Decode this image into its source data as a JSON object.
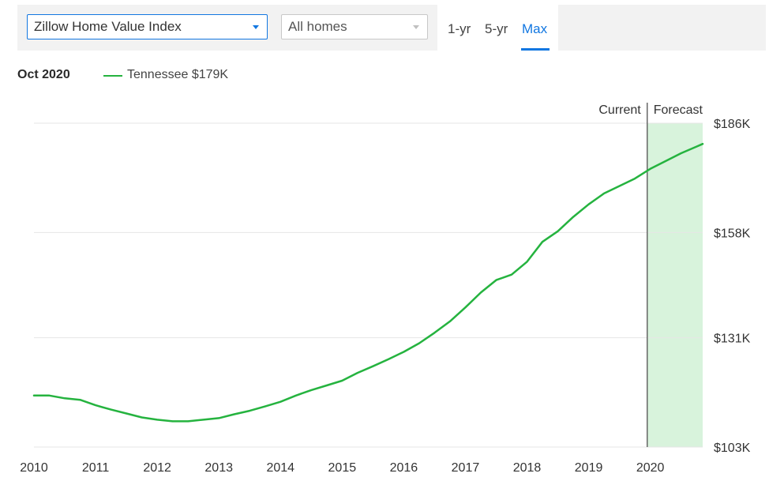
{
  "controls": {
    "index_select": "Zillow Home Value Index",
    "home_type_select": "All homes",
    "range_tabs": [
      "1-yr",
      "5-yr",
      "Max"
    ],
    "active_tab": "Max",
    "accent_color": "#1277e1"
  },
  "legend": {
    "date": "Oct 2020",
    "series_label": "Tennessee $179K",
    "series_color": "#25b33f"
  },
  "chart_data": {
    "type": "line",
    "x_ticks": [
      "2010",
      "2011",
      "2012",
      "2013",
      "2014",
      "2015",
      "2016",
      "2017",
      "2018",
      "2019",
      "2020"
    ],
    "y_ticks": [
      "$103K",
      "$131K",
      "$158K",
      "$186K"
    ],
    "y_tick_values": [
      103,
      131,
      158,
      186
    ],
    "ylim": [
      103,
      186
    ],
    "xlim": [
      2010.0,
      2020.85
    ],
    "current_label": "Current",
    "forecast_label": "Forecast",
    "current_x": 2019.95,
    "forecast_end_x": 2020.85,
    "forecast_color": "#d8f3dc",
    "grid": true,
    "series": [
      {
        "name": "Tennessee",
        "color": "#25b33f",
        "x": [
          2010.0,
          2010.25,
          2010.5,
          2010.75,
          2011.0,
          2011.25,
          2011.5,
          2011.75,
          2012.0,
          2012.25,
          2012.5,
          2012.75,
          2013.0,
          2013.25,
          2013.5,
          2013.75,
          2014.0,
          2014.25,
          2014.5,
          2014.75,
          2015.0,
          2015.25,
          2015.5,
          2015.75,
          2016.0,
          2016.25,
          2016.5,
          2016.75,
          2017.0,
          2017.25,
          2017.5,
          2017.75,
          2018.0,
          2018.25,
          2018.5,
          2018.75,
          2019.0,
          2019.25,
          2019.5,
          2019.75,
          2020.0,
          2020.25,
          2020.5,
          2020.75,
          2020.85
        ],
        "values": [
          116.2,
          116.2,
          115.5,
          115.1,
          113.7,
          112.6,
          111.6,
          110.6,
          110.0,
          109.6,
          109.6,
          110.0,
          110.4,
          111.4,
          112.3,
          113.4,
          114.6,
          116.2,
          117.6,
          118.8,
          120.0,
          122.0,
          123.7,
          125.5,
          127.4,
          129.6,
          132.3,
          135.2,
          138.8,
          142.6,
          145.8,
          147.2,
          150.5,
          155.6,
          158.3,
          162.0,
          165.2,
          168.0,
          169.9,
          171.8,
          174.3,
          176.3,
          178.3,
          180.0,
          180.7
        ]
      }
    ]
  }
}
